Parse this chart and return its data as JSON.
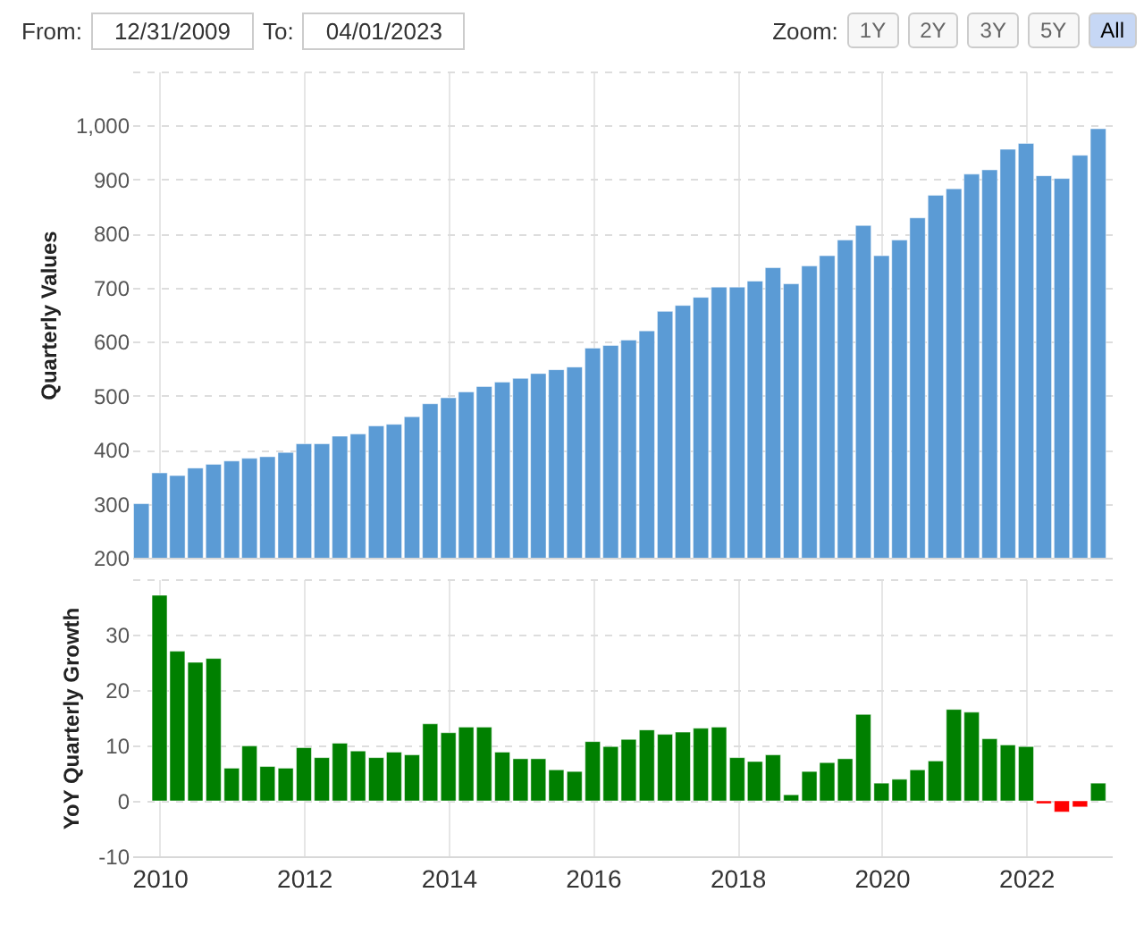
{
  "chart_data": [
    {
      "type": "other",
      "annotations": [
        "From:",
        "12/31/2009",
        "To:",
        "04/01/2023",
        "Zoom:",
        "1Y",
        "2Y",
        "3Y",
        "5Y",
        "All"
      ]
    },
    {
      "type": "bar",
      "ylabel": "Quarterly Values",
      "tick_labels": "y",
      "grid": true,
      "x": [
        "2009-09-30",
        "2009-12-31",
        "2010-03-31",
        "2010-06-30",
        "2010-09-30",
        "2010-12-31",
        "2011-03-31",
        "2011-06-30",
        "2011-09-30",
        "2011-12-31",
        "2012-03-31",
        "2012-06-30",
        "2012-09-30",
        "2012-12-31",
        "2013-03-31",
        "2013-06-30",
        "2013-09-30",
        "2013-12-31",
        "2014-03-31",
        "2014-06-30",
        "2014-09-30",
        "2014-12-31",
        "2015-03-31",
        "2015-06-30",
        "2015-09-30",
        "2015-12-31",
        "2016-03-31",
        "2016-06-30",
        "2016-09-30",
        "2016-12-31",
        "2017-03-31",
        "2017-06-30",
        "2017-09-30",
        "2017-12-31",
        "2018-03-31",
        "2018-06-30",
        "2018-09-30",
        "2018-12-31",
        "2019-03-31",
        "2019-06-30",
        "2019-09-30",
        "2019-12-31",
        "2020-03-31",
        "2020-06-30",
        "2020-09-30",
        "2020-12-31",
        "2021-03-31",
        "2021-06-30",
        "2021-09-30",
        "2021-12-31",
        "2022-03-31",
        "2022-06-30",
        "2022-09-30",
        "2022-12-31"
      ],
      "series": [
        {
          "color": "#5b9bd5",
          "values": [
            300,
            357,
            352,
            366,
            373,
            379,
            384,
            387,
            395,
            411,
            411,
            425,
            429,
            444,
            447,
            461,
            485,
            496,
            507,
            517,
            525,
            532,
            541,
            548,
            553,
            588,
            593,
            603,
            620,
            656,
            667,
            682,
            701,
            701,
            712,
            737,
            707,
            740,
            759,
            788,
            815,
            759,
            788,
            829,
            871,
            883,
            910,
            918,
            956,
            967,
            907,
            902,
            945,
            994
          ]
        }
      ],
      "xlim": [
        "2009-08-15",
        "2023-03-10"
      ],
      "xticks": [
        "2010",
        "2012",
        "2014",
        "2016",
        "2018",
        "2020",
        "2022"
      ],
      "ylim": [
        200,
        1100
      ],
      "yticks": [
        200,
        300,
        400,
        500,
        600,
        700,
        800,
        900,
        {
          "value": 1000,
          "label": "1,000"
        },
        {
          "value": 1100,
          "label": null
        }
      ]
    },
    {
      "type": "bar",
      "ylabel": "YoY Quarterly Growth",
      "grid": true,
      "x": [
        "2009-12-31",
        "2010-03-31",
        "2010-06-30",
        "2010-09-30",
        "2010-12-31",
        "2011-03-31",
        "2011-06-30",
        "2011-09-30",
        "2011-12-31",
        "2012-03-31",
        "2012-06-30",
        "2012-09-30",
        "2012-12-31",
        "2013-03-31",
        "2013-06-30",
        "2013-09-30",
        "2013-12-31",
        "2014-03-31",
        "2014-06-30",
        "2014-09-30",
        "2014-12-31",
        "2015-03-31",
        "2015-06-30",
        "2015-09-30",
        "2015-12-31",
        "2016-03-31",
        "2016-06-30",
        "2016-09-30",
        "2016-12-31",
        "2017-03-31",
        "2017-06-30",
        "2017-09-30",
        "2017-12-31",
        "2018-03-31",
        "2018-06-30",
        "2018-09-30",
        "2018-12-31",
        "2019-03-31",
        "2019-06-30",
        "2019-09-30",
        "2019-12-31",
        "2020-03-31",
        "2020-06-30",
        "2020-09-30",
        "2020-12-31",
        "2021-03-31",
        "2021-06-30",
        "2021-09-30",
        "2021-12-31",
        "2022-03-31",
        "2022-06-30",
        "2022-09-30",
        "2022-12-31"
      ],
      "values": [
        37.1,
        27.0,
        25.0,
        25.7,
        5.9,
        9.9,
        6.2,
        5.9,
        9.6,
        7.8,
        10.4,
        9.0,
        7.8,
        8.8,
        8.3,
        13.9,
        12.3,
        13.3,
        13.3,
        8.8,
        7.6,
        7.6,
        5.6,
        5.3,
        10.7,
        9.8,
        11.1,
        12.8,
        12.0,
        12.4,
        13.1,
        13.3,
        7.8,
        7.1,
        8.3,
        1.1,
        5.3,
        6.9,
        7.6,
        15.6,
        3.2,
        3.9,
        5.6,
        7.2,
        16.5,
        16.0,
        11.2,
        10.1,
        9.8,
        -0.5,
        -2.0,
        -1.1,
        3.2
      ],
      "colors": [
        "#008000",
        "#008000",
        "#008000",
        "#008000",
        "#008000",
        "#008000",
        "#008000",
        "#008000",
        "#008000",
        "#008000",
        "#008000",
        "#008000",
        "#008000",
        "#008000",
        "#008000",
        "#008000",
        "#008000",
        "#008000",
        "#008000",
        "#008000",
        "#008000",
        "#008000",
        "#008000",
        "#008000",
        "#008000",
        "#008000",
        "#008000",
        "#008000",
        "#008000",
        "#008000",
        "#008000",
        "#008000",
        "#008000",
        "#008000",
        "#008000",
        "#008000",
        "#008000",
        "#008000",
        "#008000",
        "#008000",
        "#008000",
        "#008000",
        "#008000",
        "#008000",
        "#008000",
        "#008000",
        "#008000",
        "#008000",
        "#008000",
        "#ff0000",
        "#ff0000",
        "#ff0000",
        "#008000"
      ],
      "xlim": [
        "2009-08-15",
        "2023-03-10"
      ],
      "xticks": [
        "2010",
        "2012",
        "2014",
        "2016",
        "2018",
        "2020",
        "2022"
      ],
      "ylim": [
        -10,
        40
      ],
      "yticks": [
        -10,
        0,
        10,
        20,
        30,
        {
          "value": 40,
          "label": null
        }
      ]
    }
  ]
}
